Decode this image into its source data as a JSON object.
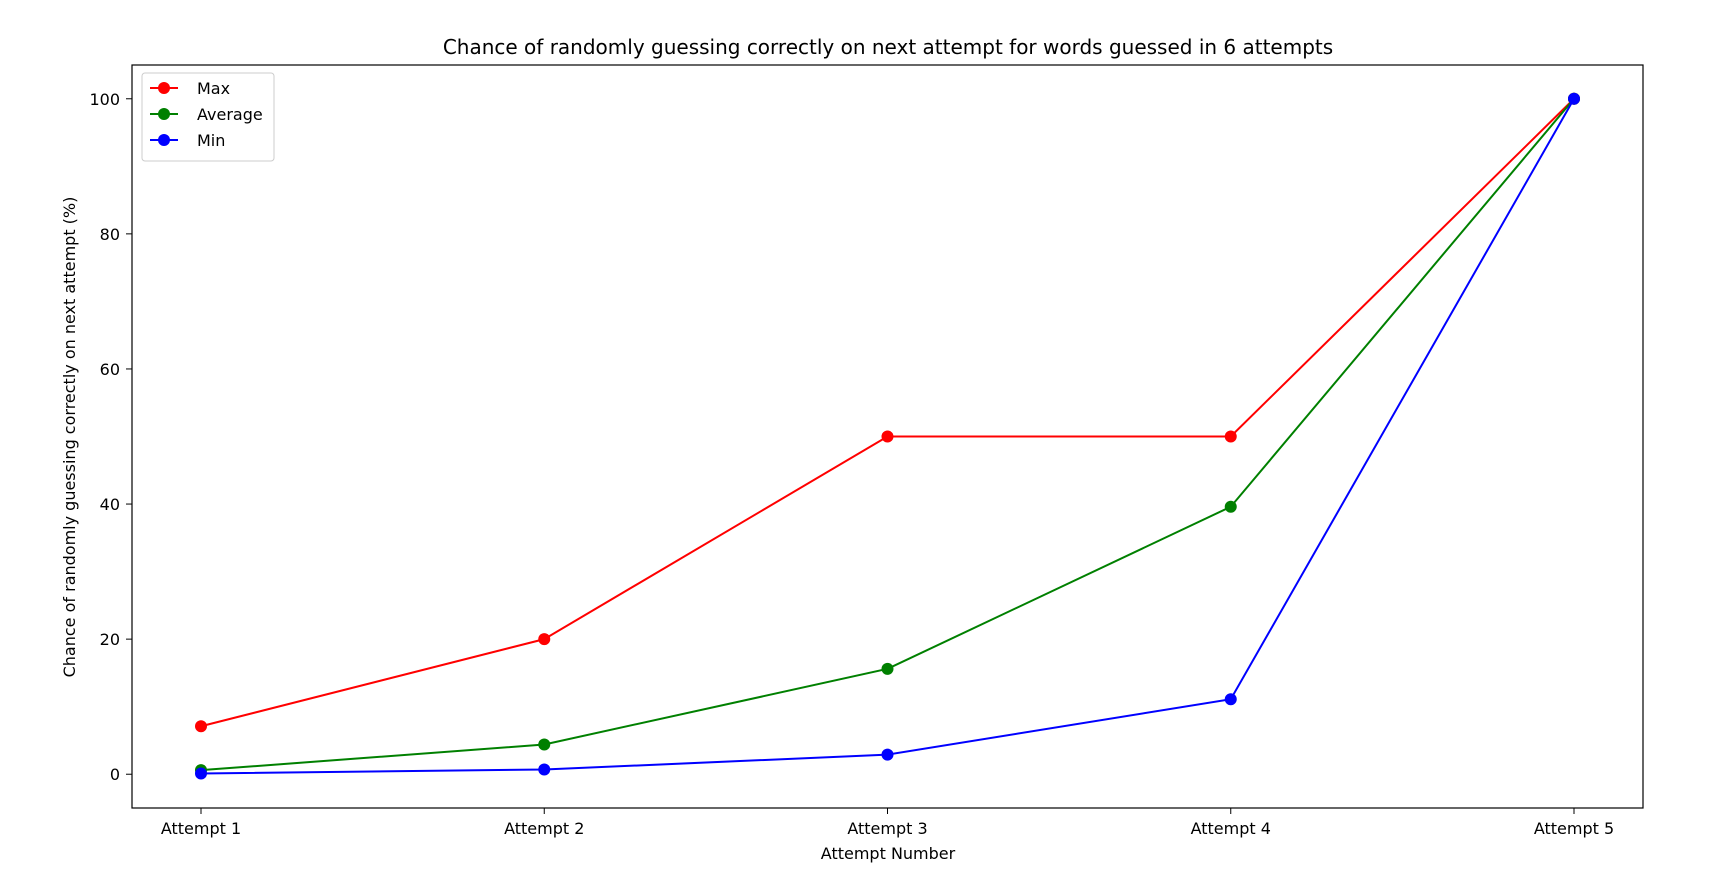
{
  "chart_data": {
    "type": "line",
    "title": "Chance of randomly guessing correctly on next attempt for words guessed in 6 attempts",
    "xlabel": "Attempt Number",
    "ylabel": "Chance of randomly guessing correctly on next attempt (%)",
    "categories": [
      "Attempt 1",
      "Attempt 2",
      "Attempt 3",
      "Attempt 4",
      "Attempt 5"
    ],
    "ylim": [
      -5,
      105
    ],
    "yticks": [
      0,
      20,
      40,
      60,
      80,
      100
    ],
    "grid": false,
    "legend_position": "top-left",
    "series": [
      {
        "name": "Max",
        "color": "#ff0000",
        "values": [
          7.1,
          20,
          50,
          50,
          100
        ]
      },
      {
        "name": "Average",
        "color": "#008000",
        "values": [
          0.6,
          4.4,
          15.6,
          39.6,
          100
        ]
      },
      {
        "name": "Min",
        "color": "#0000ff",
        "values": [
          0.1,
          0.7,
          2.9,
          11.1,
          100
        ]
      }
    ]
  }
}
